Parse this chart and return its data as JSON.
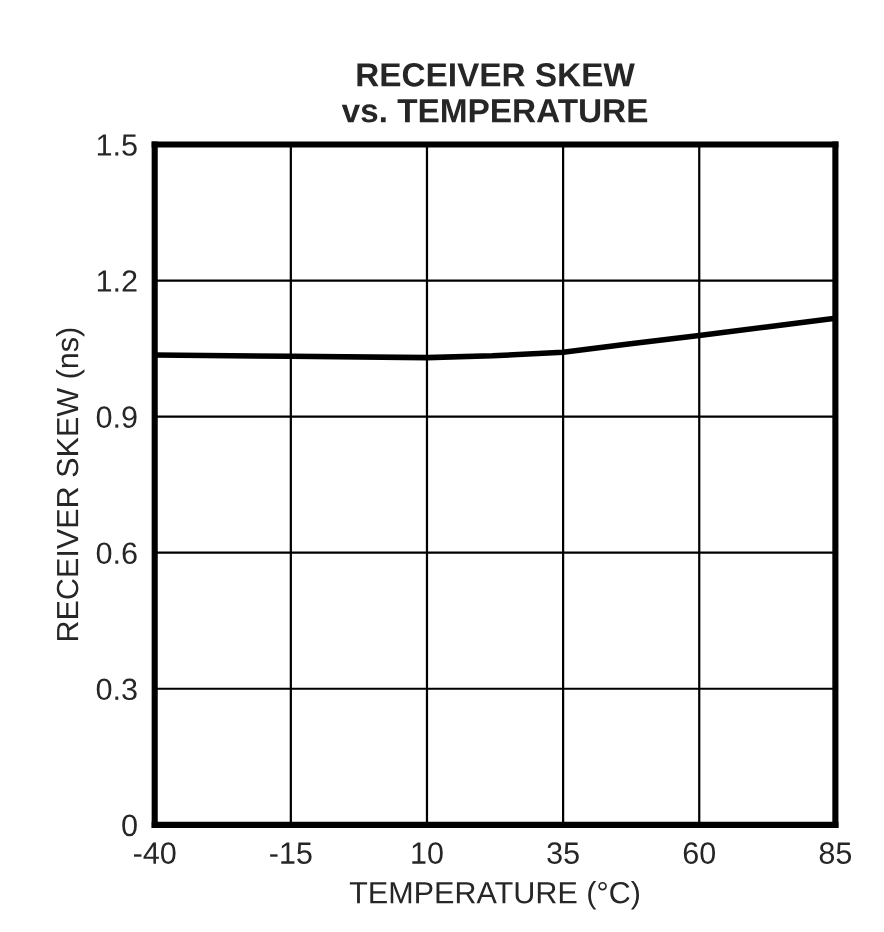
{
  "chart_data": {
    "type": "line",
    "title": "RECEIVER SKEW\nvs. TEMPERATURE",
    "xlabel": "TEMPERATURE (°C)",
    "ylabel": "RECEIVER SKEW (ns)",
    "x": [
      -40,
      -15,
      10,
      22,
      35,
      47,
      60,
      72,
      85
    ],
    "series": [
      {
        "color": "#000000",
        "values": [
          1.036,
          1.033,
          1.03,
          1.034,
          1.042,
          1.06,
          1.079,
          1.097,
          1.117
        ]
      }
    ],
    "xlim": [
      -40,
      85
    ],
    "ylim": [
      0,
      1.5
    ],
    "xticks": [
      {
        "value": -40,
        "label": "-40"
      },
      {
        "value": -15,
        "label": "-15"
      },
      10,
      35,
      60,
      85
    ],
    "yticks": [
      0,
      0.3,
      0.6,
      0.9,
      1.2,
      1.5
    ],
    "grid": true,
    "marker": "none",
    "line_style": "solid"
  }
}
